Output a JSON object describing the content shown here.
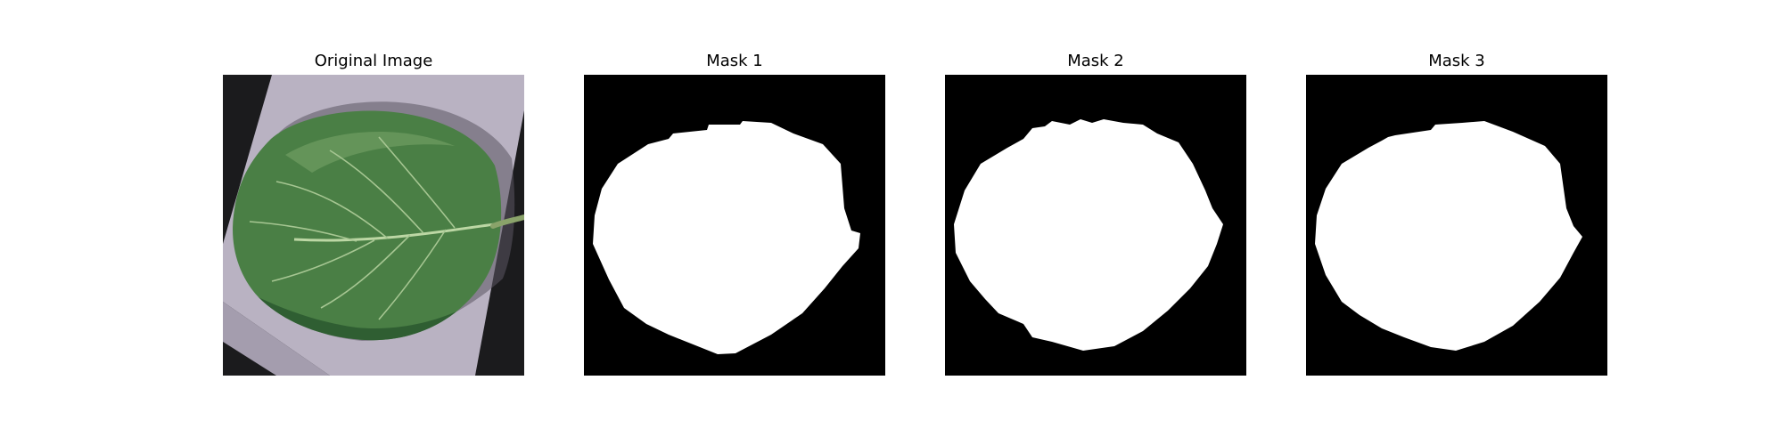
{
  "panels": [
    {
      "title": "Original Image"
    },
    {
      "title": "Mask 1"
    },
    {
      "title": "Mask 2"
    },
    {
      "title": "Mask 3"
    }
  ],
  "colors": {
    "figure_background": "#ffffff",
    "photo_background": "#1b1b1d",
    "paper": "#b9b2c2",
    "paper_shade": "#a49dae",
    "leaf_dark": "#2f5e32",
    "leaf_mid": "#4a7f45",
    "leaf_light": "#6f9d62",
    "vein": "#bcd7a4",
    "stem": "#8aa36a",
    "mask_background": "#000000",
    "mask_foreground": "#ffffff"
  }
}
